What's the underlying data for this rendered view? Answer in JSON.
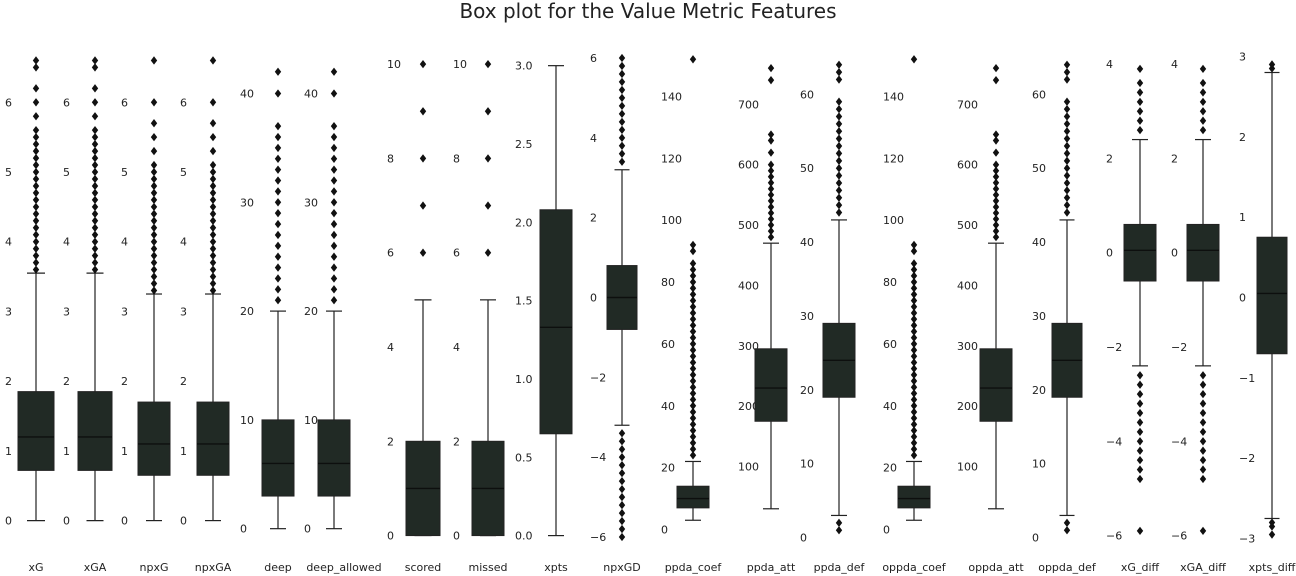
{
  "chart_data": {
    "type": "box",
    "title": "Box plot for the Value Metric Features",
    "grid": false,
    "legend": "none",
    "box_color": "#212a25",
    "line_color": "#222222",
    "panels": [
      {
        "name": "xG",
        "ylim": [
          -0.35,
          6.75
        ],
        "ticks": [
          0,
          1,
          2,
          3,
          4,
          5,
          6
        ],
        "stats": {
          "min": 0.0,
          "q1": 0.72,
          "median": 1.2,
          "q3": 1.85,
          "max": 3.55
        },
        "outliers": [
          3.6,
          3.7,
          3.8,
          3.9,
          4.0,
          4.1,
          4.2,
          4.3,
          4.4,
          4.5,
          4.6,
          4.7,
          4.8,
          4.9,
          5.0,
          5.1,
          5.2,
          5.3,
          5.4,
          5.5,
          5.6,
          5.8,
          6.0,
          6.2,
          6.5,
          6.6
        ]
      },
      {
        "name": "xGA",
        "ylim": [
          -0.35,
          6.75
        ],
        "ticks": [
          0,
          1,
          2,
          3,
          4,
          5,
          6
        ],
        "stats": {
          "min": 0.0,
          "q1": 0.72,
          "median": 1.2,
          "q3": 1.85,
          "max": 3.55
        },
        "outliers": [
          3.6,
          3.7,
          3.8,
          3.9,
          4.0,
          4.1,
          4.2,
          4.3,
          4.4,
          4.5,
          4.6,
          4.7,
          4.8,
          4.9,
          5.0,
          5.1,
          5.2,
          5.3,
          5.4,
          5.5,
          5.6,
          5.8,
          6.0,
          6.2,
          6.5,
          6.6
        ]
      },
      {
        "name": "npxG",
        "ylim": [
          -0.35,
          6.75
        ],
        "ticks": [
          0,
          1,
          2,
          3,
          4,
          5,
          6
        ],
        "stats": {
          "min": 0.0,
          "q1": 0.65,
          "median": 1.1,
          "q3": 1.7,
          "max": 3.25
        },
        "outliers": [
          3.3,
          3.4,
          3.5,
          3.6,
          3.7,
          3.8,
          3.9,
          4.0,
          4.1,
          4.2,
          4.3,
          4.4,
          4.5,
          4.6,
          4.7,
          4.8,
          4.9,
          5.0,
          5.1,
          5.3,
          5.5,
          5.7,
          6.0,
          6.6
        ]
      },
      {
        "name": "npxGA",
        "ylim": [
          -0.35,
          6.75
        ],
        "ticks": [
          0,
          1,
          2,
          3,
          4,
          5,
          6
        ],
        "stats": {
          "min": 0.0,
          "q1": 0.65,
          "median": 1.1,
          "q3": 1.7,
          "max": 3.25
        },
        "outliers": [
          3.3,
          3.4,
          3.5,
          3.6,
          3.7,
          3.8,
          3.9,
          4.0,
          4.1,
          4.2,
          4.3,
          4.4,
          4.5,
          4.6,
          4.7,
          4.8,
          4.9,
          5.0,
          5.1,
          5.3,
          5.5,
          5.7,
          6.0,
          6.6
        ]
      },
      {
        "name": "deep",
        "ylim": [
          -1.5,
          44
        ],
        "ticks": [
          0,
          10,
          20,
          30,
          40
        ],
        "stats": {
          "min": 0,
          "q1": 3,
          "median": 6,
          "q3": 10,
          "max": 20
        },
        "outliers": [
          21,
          22,
          23,
          24,
          25,
          26,
          27,
          28,
          29,
          30,
          31,
          32,
          33,
          34,
          35,
          36,
          37,
          40,
          42
        ]
      },
      {
        "name": "deep_allowed",
        "ylim": [
          -1.5,
          44
        ],
        "ticks": [
          0,
          10,
          20,
          30,
          40
        ],
        "stats": {
          "min": 0,
          "q1": 3,
          "median": 6,
          "q3": 10,
          "max": 20
        },
        "outliers": [
          21,
          22,
          23,
          24,
          25,
          26,
          27,
          28,
          29,
          30,
          31,
          32,
          33,
          34,
          35,
          36,
          37,
          40,
          42
        ]
      },
      {
        "name": "scored",
        "ylim": [
          -0.2,
          10.3
        ],
        "ticks": [
          0,
          2,
          4,
          6,
          8,
          10
        ],
        "stats": {
          "min": 0,
          "q1": 0,
          "median": 1,
          "q3": 2,
          "max": 5
        },
        "outliers": [
          6,
          7,
          8,
          9,
          10
        ]
      },
      {
        "name": "missed",
        "ylim": [
          -0.2,
          10.3
        ],
        "ticks": [
          0,
          2,
          4,
          6,
          8,
          10
        ],
        "stats": {
          "min": 0,
          "q1": 0,
          "median": 1,
          "q3": 2,
          "max": 5
        },
        "outliers": [
          6,
          7,
          8,
          9,
          10
        ]
      },
      {
        "name": "xpts",
        "ylim": [
          -0.06,
          3.1
        ],
        "ticks": [
          0.0,
          0.5,
          1.0,
          1.5,
          2.0,
          2.5,
          3.0
        ],
        "stats": {
          "min": 0.0,
          "q1": 0.65,
          "median": 1.33,
          "q3": 2.08,
          "max": 3.0
        },
        "outliers": []
      },
      {
        "name": "npxGD",
        "ylim": [
          -6.2,
          6.2
        ],
        "ticks": [
          -6,
          -4,
          -2,
          0,
          2,
          4,
          6
        ],
        "stats": {
          "min": -3.2,
          "q1": -0.8,
          "median": 0.0,
          "q3": 0.8,
          "max": 3.2
        },
        "outliers": [
          -6.0,
          -5.8,
          -5.6,
          -5.4,
          -5.2,
          -5.0,
          -4.8,
          -4.6,
          -4.4,
          -4.2,
          -4.0,
          -3.8,
          -3.6,
          -3.4,
          3.4,
          3.6,
          3.8,
          4.0,
          4.2,
          4.4,
          4.6,
          4.8,
          5.0,
          5.2,
          5.4,
          5.6,
          5.8,
          6.0
        ]
      },
      {
        "name": "ppda_coef",
        "ylim": [
          -5,
          155
        ],
        "ticks": [
          0,
          20,
          40,
          60,
          80,
          100,
          120,
          140
        ],
        "stats": {
          "min": 3,
          "q1": 7,
          "median": 10,
          "q3": 14,
          "max": 22
        },
        "outliers": [
          24,
          26,
          28,
          30,
          32,
          34,
          36,
          38,
          40,
          42,
          44,
          46,
          48,
          50,
          52,
          54,
          56,
          58,
          60,
          62,
          64,
          66,
          68,
          70,
          72,
          74,
          76,
          78,
          80,
          82,
          84,
          86,
          90,
          92,
          152
        ]
      },
      {
        "name": "ppda_att",
        "ylim": [
          -30,
          790
        ],
        "ticks": [
          100,
          200,
          300,
          400,
          500,
          600,
          700
        ],
        "stats": {
          "min": 30,
          "q1": 175,
          "median": 230,
          "q3": 295,
          "max": 470
        },
        "outliers": [
          480,
          490,
          500,
          510,
          520,
          530,
          540,
          550,
          560,
          570,
          580,
          590,
          600,
          620,
          640,
          650,
          740,
          760
        ]
      },
      {
        "name": "ppda_def",
        "ylim": [
          -1,
          66
        ],
        "ticks": [
          0,
          10,
          20,
          30,
          40,
          50,
          60
        ],
        "stats": {
          "min": 3,
          "q1": 19,
          "median": 24,
          "q3": 29,
          "max": 43
        },
        "outliers": [
          1,
          2,
          44,
          45,
          46,
          47,
          48,
          49,
          50,
          51,
          52,
          53,
          54,
          55,
          56,
          57,
          58,
          59,
          62,
          63,
          64
        ]
      },
      {
        "name": "oppda_coef",
        "ylim": [
          -5,
          155
        ],
        "ticks": [
          0,
          20,
          40,
          60,
          80,
          100,
          120,
          140
        ],
        "stats": {
          "min": 3,
          "q1": 7,
          "median": 10,
          "q3": 14,
          "max": 22
        },
        "outliers": [
          24,
          26,
          28,
          30,
          32,
          34,
          36,
          38,
          40,
          42,
          44,
          46,
          48,
          50,
          52,
          54,
          56,
          58,
          60,
          62,
          64,
          66,
          68,
          70,
          72,
          74,
          76,
          78,
          80,
          82,
          84,
          86,
          90,
          92,
          152
        ]
      },
      {
        "name": "oppda_att",
        "ylim": [
          -30,
          790
        ],
        "ticks": [
          100,
          200,
          300,
          400,
          500,
          600,
          700
        ],
        "stats": {
          "min": 30,
          "q1": 175,
          "median": 230,
          "q3": 295,
          "max": 470
        },
        "outliers": [
          480,
          490,
          500,
          510,
          520,
          530,
          540,
          550,
          560,
          570,
          580,
          590,
          600,
          620,
          640,
          650,
          740,
          760
        ]
      },
      {
        "name": "oppda_def",
        "ylim": [
          -1,
          66
        ],
        "ticks": [
          0,
          10,
          20,
          30,
          40,
          50,
          60
        ],
        "stats": {
          "min": 3,
          "q1": 19,
          "median": 24,
          "q3": 29,
          "max": 43
        },
        "outliers": [
          1,
          2,
          44,
          45,
          46,
          47,
          48,
          49,
          50,
          51,
          52,
          53,
          54,
          55,
          56,
          57,
          58,
          59,
          62,
          63,
          64
        ]
      },
      {
        "name": "xG_diff",
        "ylim": [
          -6.2,
          4.3
        ],
        "ticks": [
          -6,
          -4,
          -2,
          0,
          2,
          4
        ],
        "stats": {
          "min": -2.4,
          "q1": -0.6,
          "median": 0.05,
          "q3": 0.6,
          "max": 2.4
        },
        "outliers": [
          -5.9,
          -4.8,
          -4.6,
          -4.4,
          -4.2,
          -4.0,
          -3.8,
          -3.6,
          -3.4,
          -3.2,
          -3.0,
          -2.8,
          -2.6,
          2.6,
          2.8,
          3.0,
          3.2,
          3.4,
          3.6,
          3.9
        ]
      },
      {
        "name": "xGA_diff",
        "ylim": [
          -6.2,
          4.3
        ],
        "ticks": [
          -6,
          -4,
          -2,
          0,
          2,
          4
        ],
        "stats": {
          "min": -2.4,
          "q1": -0.6,
          "median": 0.05,
          "q3": 0.6,
          "max": 2.4
        },
        "outliers": [
          -5.9,
          -4.8,
          -4.6,
          -4.4,
          -4.2,
          -4.0,
          -3.8,
          -3.6,
          -3.4,
          -3.2,
          -3.0,
          -2.8,
          -2.6,
          2.6,
          2.8,
          3.0,
          3.2,
          3.4,
          3.6,
          3.9
        ]
      },
      {
        "name": "xpts_diff",
        "ylim": [
          -3.08,
          3.08
        ],
        "ticks": [
          -3,
          -2,
          -1,
          0,
          1,
          2,
          3
        ],
        "stats": {
          "min": -2.75,
          "q1": -0.7,
          "median": 0.05,
          "q3": 0.75,
          "max": 2.8
        },
        "outliers": [
          -2.95,
          -2.85,
          -2.8,
          2.85,
          2.9
        ]
      }
    ]
  }
}
